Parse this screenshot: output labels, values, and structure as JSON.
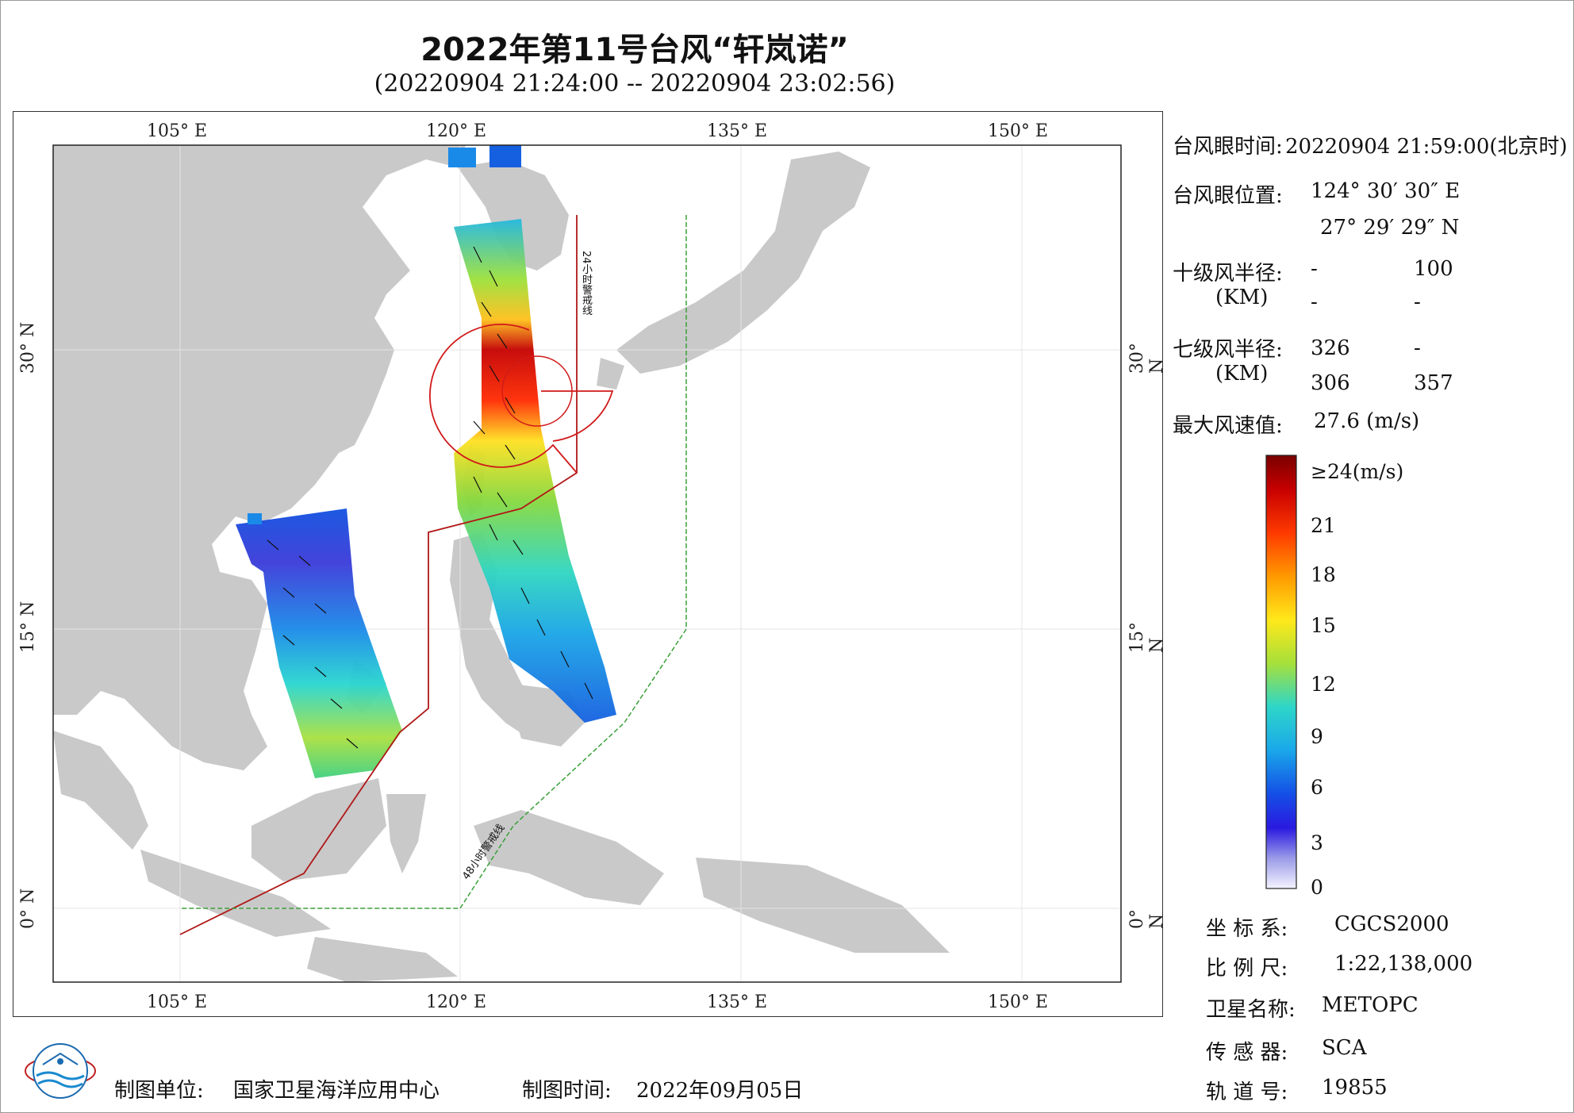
{
  "header": {
    "title": "2022年第11号台风“轩岚诺”",
    "time_range": "(20220904 21:24:00 -- 20220904 23:02:56)"
  },
  "map": {
    "lon_ticks": [
      "105° E",
      "120° E",
      "135° E",
      "150° E"
    ],
    "lat_ticks": [
      "30° N",
      "15° N",
      "0° N"
    ],
    "warning_line_24h": "24小时警戒线",
    "warning_line_48h": "48小时警戒线",
    "colors": {
      "land": "#c9c9c9",
      "sea": "#ffffff",
      "line_24h": "#b01818",
      "line_48h": "#3aa03a"
    }
  },
  "info": {
    "eye_time_label": "台风眼时间:",
    "eye_time_value": "20220904 21:59:00(北京时)",
    "eye_pos_label": "台风眼位置:",
    "eye_lon": "124° 30′ 30″ E",
    "eye_lat": "27° 29′ 29″ N",
    "r10_label": "十级风半径:",
    "r10_unit": "(KM)",
    "r10_values": [
      "-",
      "100",
      "-",
      "-"
    ],
    "r7_label": "七级风半径:",
    "r7_unit": "(KM)",
    "r7_values": [
      "326",
      "-",
      "306",
      "357"
    ],
    "max_wind_label": "最大风速值:",
    "max_wind_value": "27.6 (m/s)"
  },
  "colorbar": {
    "labels": [
      "≥24(m/s)",
      "21",
      "18",
      "15",
      "12",
      "9",
      "6",
      "3",
      "0"
    ]
  },
  "metadata": {
    "crs_label": "坐 标 系:",
    "crs_value": "CGCS2000",
    "scale_label": "比 例 尺:",
    "scale_value": "1:22,138,000",
    "satellite_label": "卫星名称:",
    "satellite_value": "METOPC",
    "sensor_label": "传 感 器:",
    "sensor_value": "SCA",
    "orbit_label": "轨 道 号:",
    "orbit_value": "19855"
  },
  "footer": {
    "producer_label": "制图单位:",
    "producer_value": "国家卫星海洋应用中心",
    "date_label": "制图时间:",
    "date_value": "2022年09月05日"
  }
}
